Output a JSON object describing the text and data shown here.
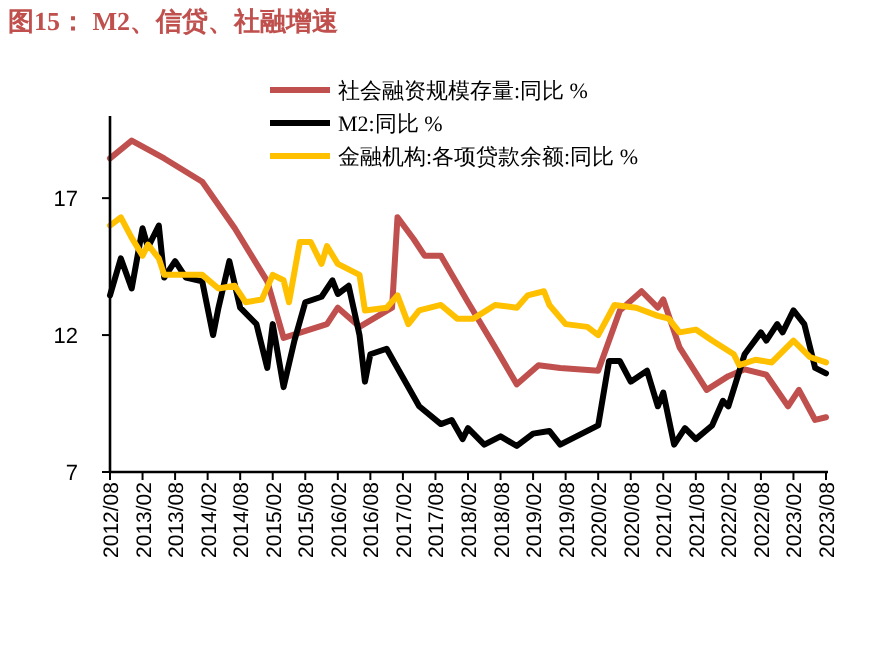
{
  "chart_data": {
    "type": "line",
    "title": "图15： M2、信贷、社融增速",
    "xlim": [
      "2012-08",
      "2023-08"
    ],
    "ylim": [
      7,
      20
    ],
    "yticks": [
      7,
      12,
      17
    ],
    "grid": false,
    "legend": "top right",
    "xticks": [
      {
        "value": "2012-08",
        "label": "2012/08"
      },
      {
        "value": "2013-02",
        "label": "2013/02"
      },
      {
        "value": "2013-08",
        "label": "2013/08"
      },
      {
        "value": "2014-02",
        "label": "2014/02"
      },
      {
        "value": "2014-08",
        "label": "2014/08"
      },
      {
        "value": "2015-02",
        "label": "2015/02"
      },
      {
        "value": "2015-08",
        "label": "2015/08"
      },
      {
        "value": "2016-02",
        "label": "2016/02"
      },
      {
        "value": "2016-08",
        "label": "2016/08"
      },
      {
        "value": "2017-02",
        "label": "2017/02"
      },
      {
        "value": "2017-08",
        "label": "2017/08"
      },
      {
        "value": "2018-02",
        "label": "2018/02"
      },
      {
        "value": "2018-08",
        "label": "2018/08"
      },
      {
        "value": "2019-02",
        "label": "2019/02"
      },
      {
        "value": "2019-08",
        "label": "2019/08"
      },
      {
        "value": "2020-02",
        "label": "2020/02"
      },
      {
        "value": "2020-08",
        "label": "2020/08"
      },
      {
        "value": "2021-02",
        "label": "2021/02"
      },
      {
        "value": "2021-08",
        "label": "2021/08"
      },
      {
        "value": "2022-02",
        "label": "2022/02"
      },
      {
        "value": "2022-08",
        "label": "2022/08"
      },
      {
        "value": "2023-02",
        "label": "2023/02"
      },
      {
        "value": "2023-08",
        "label": "2023/08"
      }
    ],
    "series": [
      {
        "name": "社会融资规模存量:同比 %",
        "color": "#c0504d",
        "x": [
          "2012-08",
          "2012-12",
          "2013-06",
          "2014-01",
          "2014-07",
          "2015-01",
          "2015-04",
          "2015-12",
          "2016-02",
          "2016-06",
          "2016-12",
          "2017-01",
          "2017-04",
          "2017-06",
          "2017-09",
          "2018-02",
          "2018-07",
          "2018-11",
          "2019-03",
          "2019-07",
          "2020-02",
          "2020-06",
          "2020-10",
          "2021-01",
          "2021-02",
          "2021-05",
          "2021-10",
          "2022-02",
          "2022-05",
          "2022-09",
          "2023-01",
          "2023-03",
          "2023-06",
          "2023-08"
        ],
        "values": [
          18.45,
          19.1,
          18.45,
          17.6,
          15.9,
          13.96,
          11.9,
          12.4,
          13.0,
          12.3,
          13.0,
          16.3,
          15.5,
          14.9,
          14.9,
          13.2,
          11.55,
          10.2,
          10.9,
          10.8,
          10.7,
          12.9,
          13.6,
          13.0,
          13.3,
          11.55,
          10.0,
          10.5,
          10.75,
          10.55,
          9.4,
          10.0,
          8.9,
          9.0
        ]
      },
      {
        "name": "M2:同比 %",
        "color": "#000000",
        "x": [
          "2012-08",
          "2012-10",
          "2012-12",
          "2013-02",
          "2013-03",
          "2013-05",
          "2013-06",
          "2013-08",
          "2013-10",
          "2014-01",
          "2014-03",
          "2014-04",
          "2014-06",
          "2014-08",
          "2014-11",
          "2015-01",
          "2015-02",
          "2015-04",
          "2015-06",
          "2015-08",
          "2015-11",
          "2016-01",
          "2016-02",
          "2016-04",
          "2016-06",
          "2016-07",
          "2016-08",
          "2016-11",
          "2017-01",
          "2017-05",
          "2017-09",
          "2017-11",
          "2018-01",
          "2018-02",
          "2018-05",
          "2018-08",
          "2018-11",
          "2019-02",
          "2019-05",
          "2019-07",
          "2019-11",
          "2020-02",
          "2020-04",
          "2020-06",
          "2020-08",
          "2020-11",
          "2021-01",
          "2021-02",
          "2021-04",
          "2021-06",
          "2021-08",
          "2021-11",
          "2022-01",
          "2022-02",
          "2022-05",
          "2022-08",
          "2022-09",
          "2022-11",
          "2022-12",
          "2023-02",
          "2023-04",
          "2023-06",
          "2023-08"
        ],
        "values": [
          13.45,
          14.8,
          13.7,
          15.9,
          15.2,
          16.0,
          14.1,
          14.7,
          14.1,
          13.96,
          12.0,
          13.0,
          14.7,
          13.0,
          12.4,
          10.8,
          12.4,
          10.1,
          11.8,
          13.2,
          13.4,
          14.0,
          13.5,
          13.8,
          12.0,
          10.3,
          11.3,
          11.5,
          10.8,
          9.4,
          8.75,
          8.9,
          8.2,
          8.6,
          8.0,
          8.3,
          7.95,
          8.4,
          8.5,
          8.0,
          8.4,
          8.7,
          11.05,
          11.05,
          10.3,
          10.7,
          9.4,
          9.9,
          8.0,
          8.6,
          8.2,
          8.7,
          9.6,
          9.4,
          11.3,
          12.1,
          11.8,
          12.4,
          12.1,
          12.9,
          12.4,
          10.8,
          10.6
        ]
      },
      {
        "name": "金融机构:各项贷款余额:同比 %",
        "color": "#ffc000",
        "x": [
          "2012-08",
          "2012-10",
          "2012-12",
          "2013-02",
          "2013-03",
          "2013-05",
          "2013-06",
          "2013-08",
          "2014-01",
          "2014-04",
          "2014-07",
          "2014-09",
          "2014-12",
          "2015-02",
          "2015-04",
          "2015-05",
          "2015-07",
          "2015-09",
          "2015-11",
          "2015-12",
          "2016-02",
          "2016-05",
          "2016-06",
          "2016-07",
          "2016-11",
          "2017-01",
          "2017-03",
          "2017-05",
          "2017-09",
          "2017-12",
          "2018-03",
          "2018-07",
          "2018-11",
          "2019-01",
          "2019-04",
          "2019-05",
          "2019-08",
          "2019-12",
          "2020-02",
          "2020-05",
          "2020-09",
          "2021-01",
          "2021-03",
          "2021-05",
          "2021-08",
          "2021-11",
          "2022-03",
          "2022-04",
          "2022-07",
          "2022-10",
          "2023-02",
          "2023-05",
          "2023-08"
        ],
        "values": [
          16.0,
          16.3,
          15.55,
          14.9,
          15.3,
          14.8,
          14.2,
          14.2,
          14.2,
          13.7,
          13.8,
          13.2,
          13.3,
          14.2,
          14.0,
          13.2,
          15.4,
          15.4,
          14.6,
          15.25,
          14.6,
          14.3,
          14.2,
          12.9,
          13.0,
          13.45,
          12.4,
          12.9,
          13.1,
          12.6,
          12.6,
          13.1,
          13.0,
          13.45,
          13.6,
          13.1,
          12.4,
          12.3,
          12.0,
          13.1,
          13.0,
          12.7,
          12.6,
          12.1,
          12.2,
          11.8,
          11.3,
          10.9,
          11.1,
          11.0,
          11.8,
          11.2,
          11.0
        ]
      }
    ]
  }
}
